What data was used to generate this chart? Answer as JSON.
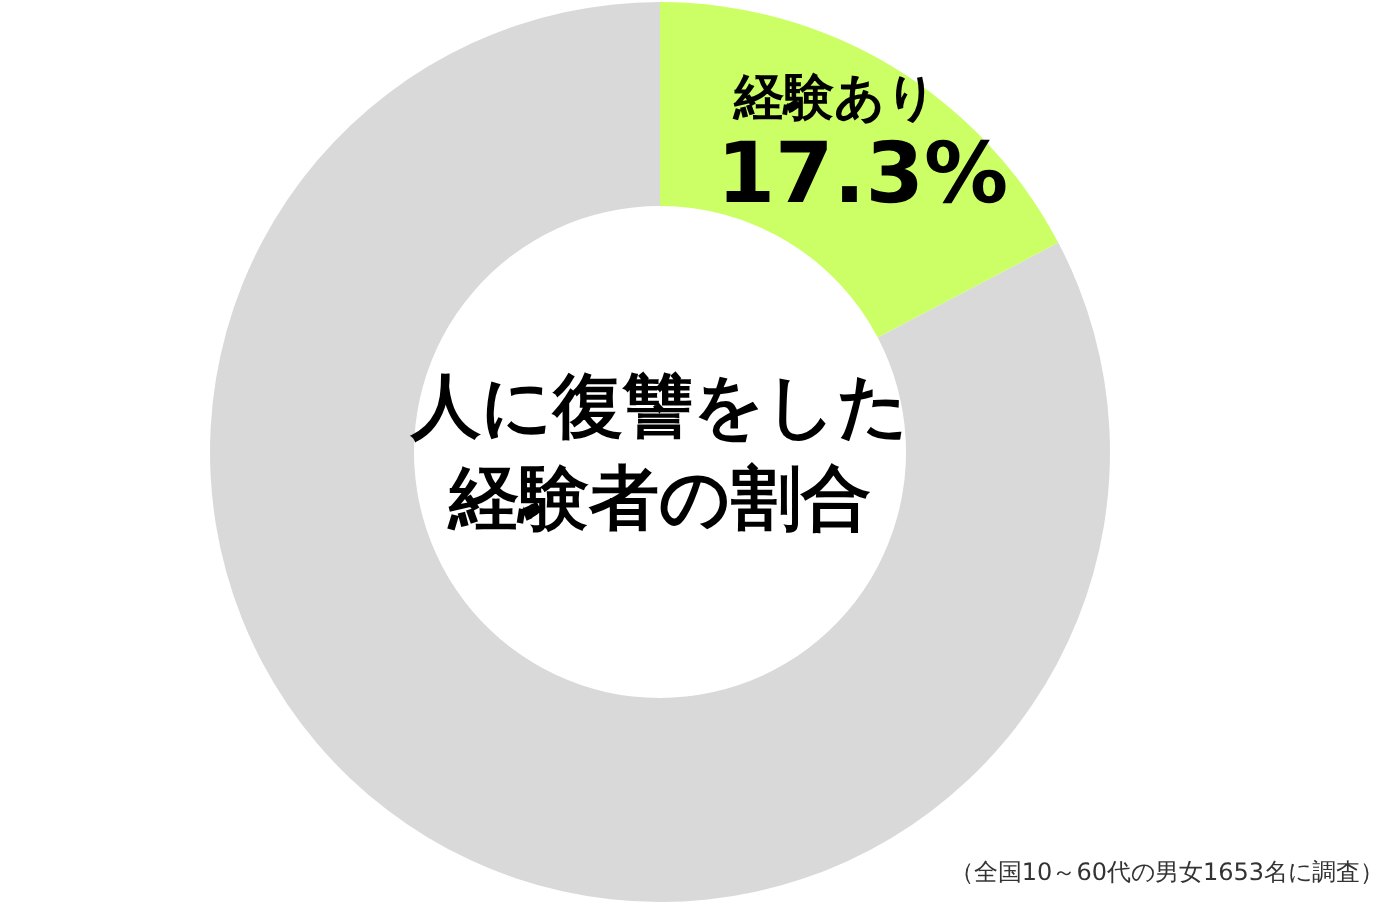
{
  "chart_data": {
    "type": "donut",
    "title": "人に復讐をした経験者の割合",
    "categories": [
      "経験あり",
      null
    ],
    "values": [
      17.3,
      82.7
    ],
    "colors": [
      "#ccff66",
      "#d9d9d9"
    ],
    "value_labels": [
      "17.3%",
      null
    ],
    "annotations": [
      "（全国10～60代の男女1653名に調査）"
    ]
  }
}
